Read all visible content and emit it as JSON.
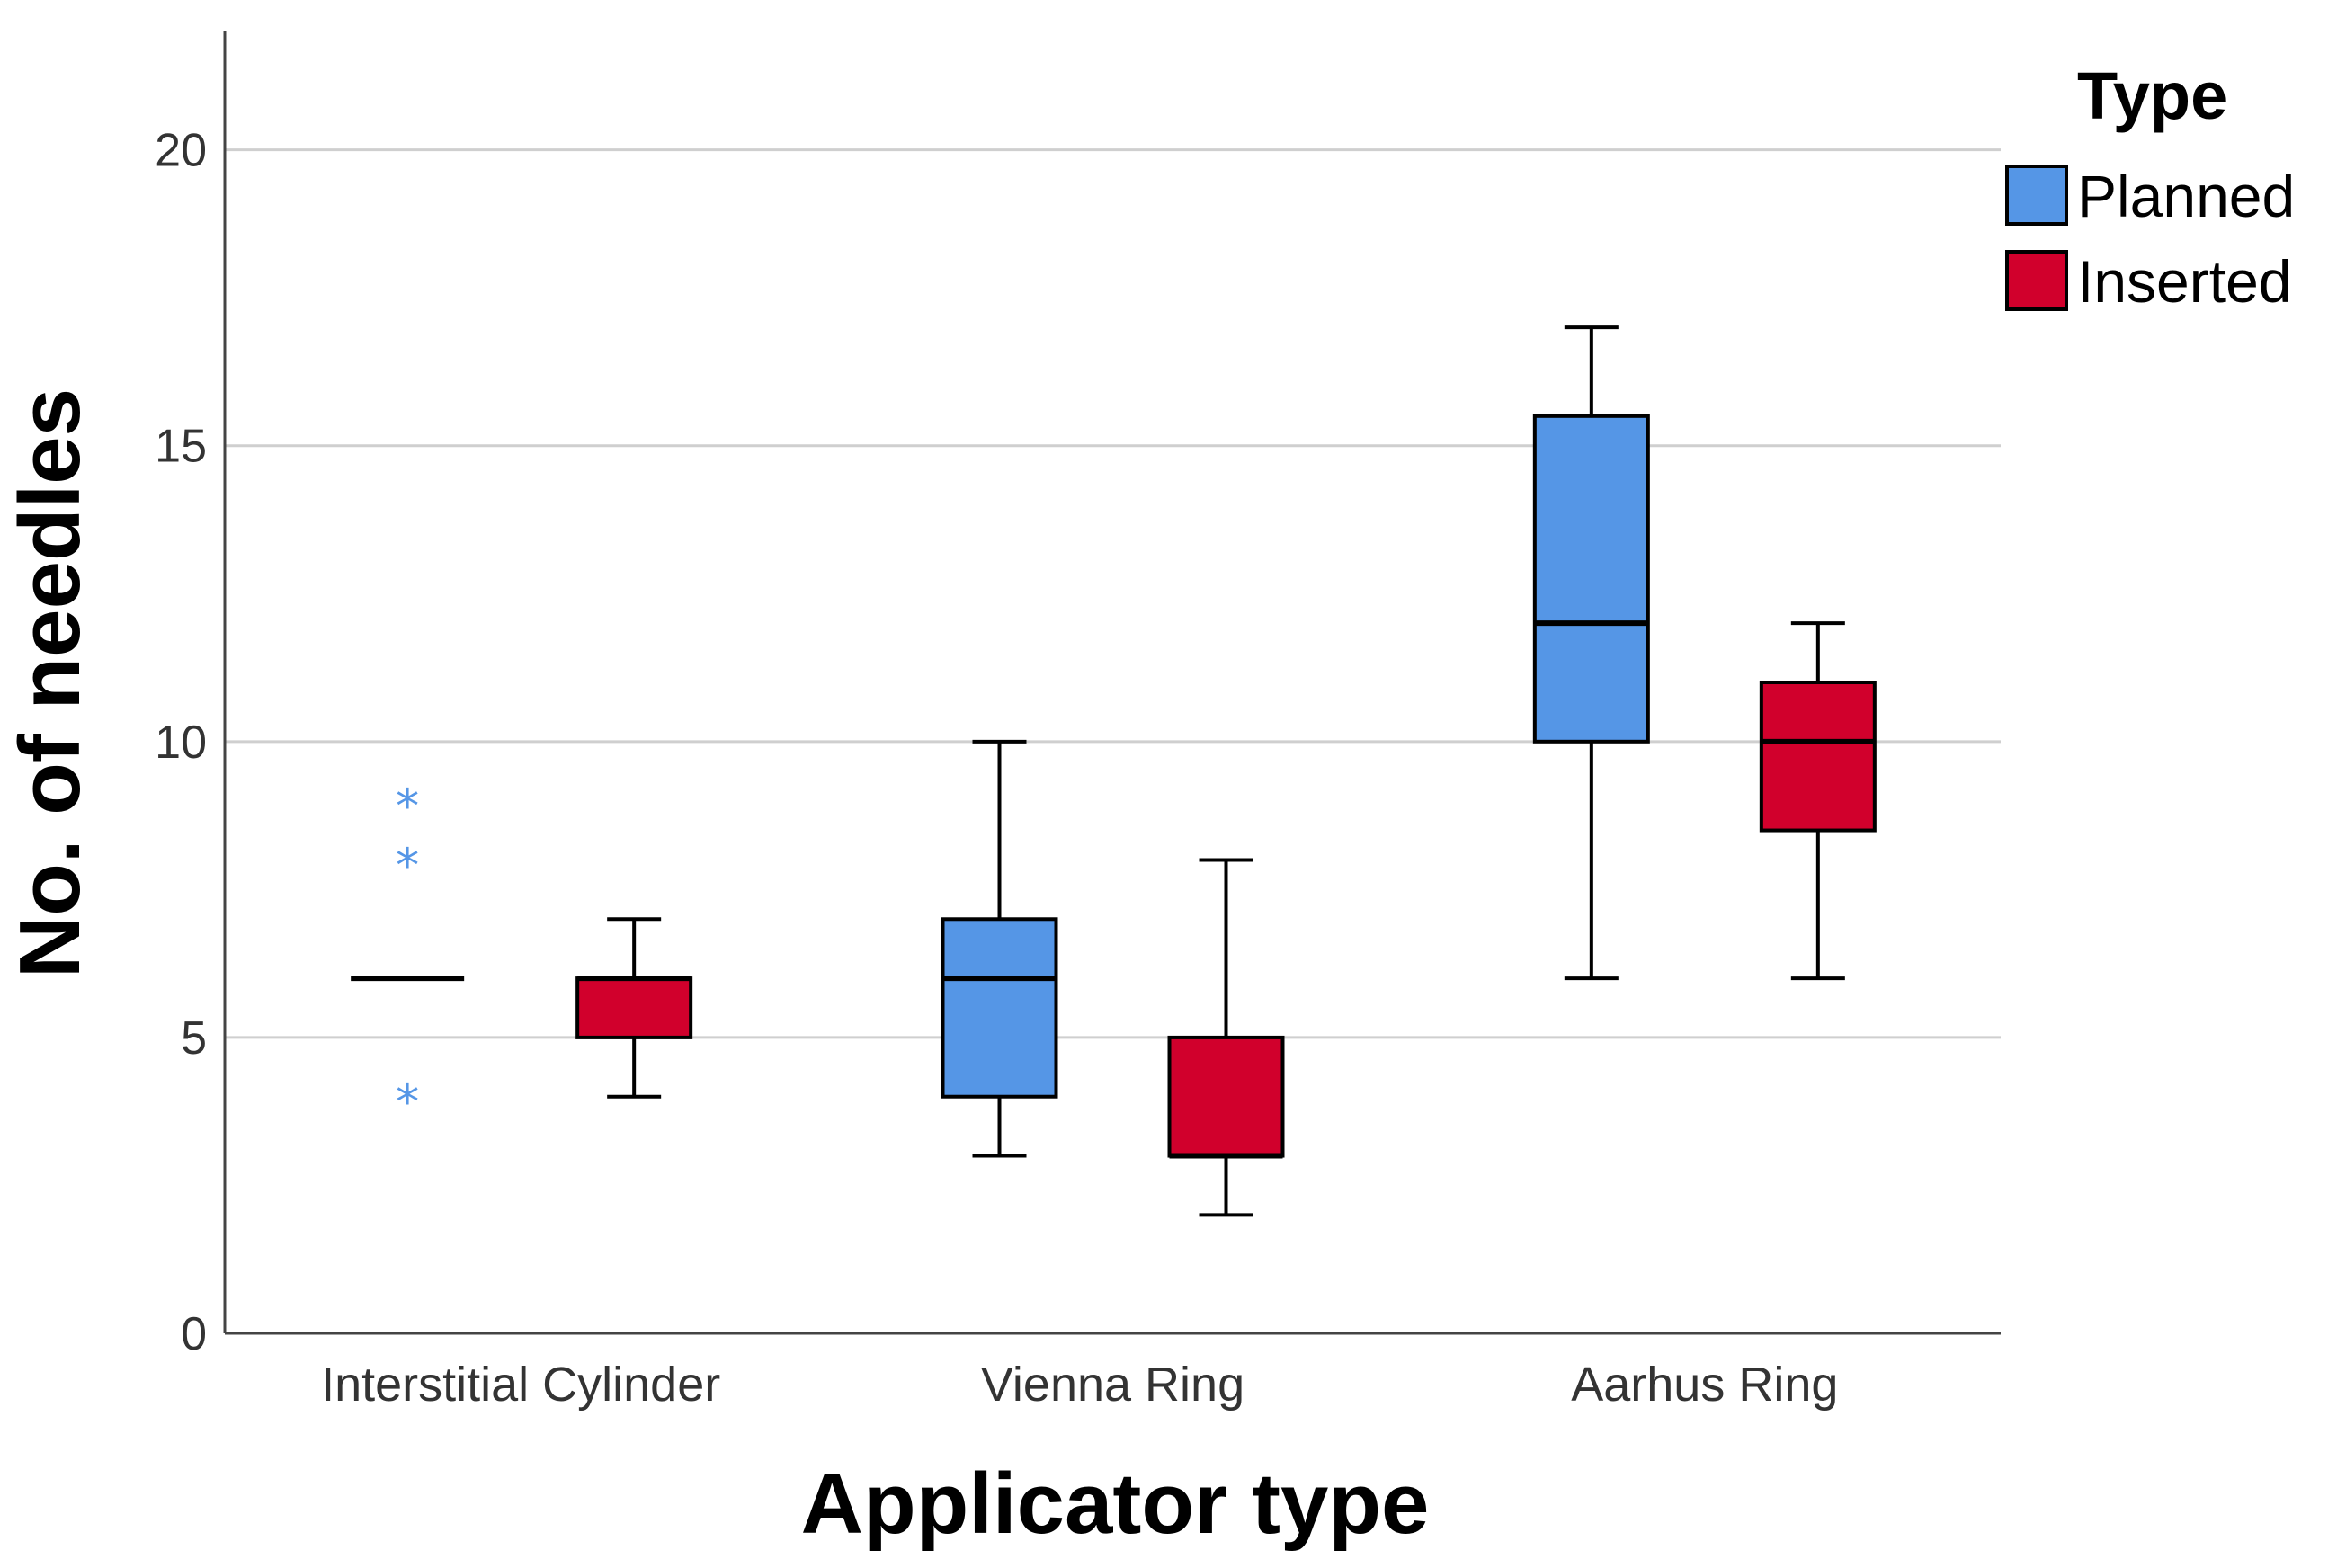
{
  "chart_data": {
    "type": "boxplot",
    "xlabel": "Applicator type",
    "ylabel": "No. of needles",
    "ylim": [
      0,
      22
    ],
    "yticks": [
      0,
      5,
      10,
      15,
      20
    ],
    "grid": true,
    "legend": {
      "title": "Type",
      "position": "top-right"
    },
    "categories": [
      "Interstitial Cylinder",
      "Vienna Ring",
      "Aarhus Ring"
    ],
    "series": [
      {
        "name": "Planned",
        "color": "#5596E6",
        "boxes": [
          {
            "min": 6,
            "q1": 6,
            "median": 6,
            "q3": 6,
            "max": 6,
            "outliers": [
              9,
              8,
              4
            ]
          },
          {
            "min": 3,
            "q1": 4,
            "median": 6,
            "q3": 7,
            "max": 10,
            "outliers": []
          },
          {
            "min": 6,
            "q1": 10,
            "median": 12,
            "q3": 15.5,
            "max": 17,
            "outliers": []
          }
        ]
      },
      {
        "name": "Inserted",
        "color": "#D1002C",
        "boxes": [
          {
            "min": 4,
            "q1": 5,
            "median": 6,
            "q3": 6,
            "max": 7,
            "outliers": []
          },
          {
            "min": 2,
            "q1": 3,
            "median": 3,
            "q3": 5,
            "max": 8,
            "outliers": []
          },
          {
            "min": 6,
            "q1": 8.5,
            "median": 10,
            "q3": 11,
            "max": 12,
            "outliers": []
          }
        ]
      }
    ]
  }
}
